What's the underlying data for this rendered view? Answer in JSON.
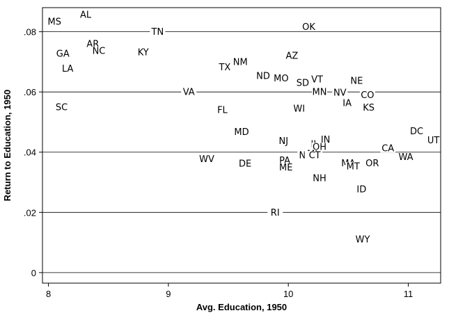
{
  "chart_data": {
    "type": "scatter",
    "title": "",
    "xlabel": "Avg. Education, 1950",
    "ylabel": "Return to Education, 1950",
    "xlim": [
      7.95,
      11.27
    ],
    "ylim": [
      -0.0035,
      0.088
    ],
    "x_ticks": [
      8,
      9,
      10,
      11
    ],
    "x_tick_labels": [
      "8",
      "9",
      "10",
      "11"
    ],
    "y_ticks": [
      0,
      0.02,
      0.04,
      0.06,
      0.08
    ],
    "y_tick_labels": [
      "0",
      ".02",
      ".04",
      ".06",
      ".08"
    ],
    "horizontal_gridlines": true,
    "legend": "none",
    "points": [
      {
        "label": "MS",
        "x": 8.05,
        "y": 0.0834
      },
      {
        "label": "AL",
        "x": 8.31,
        "y": 0.0857
      },
      {
        "label": "TN",
        "x": 8.91,
        "y": 0.08
      },
      {
        "label": "OK",
        "x": 10.17,
        "y": 0.0817
      },
      {
        "label": "GA",
        "x": 8.12,
        "y": 0.0728
      },
      {
        "label": "AR",
        "x": 8.37,
        "y": 0.076
      },
      {
        "label": "NC",
        "x": 8.42,
        "y": 0.0737
      },
      {
        "label": "KY",
        "x": 8.79,
        "y": 0.0732
      },
      {
        "label": "LA",
        "x": 8.16,
        "y": 0.0678
      },
      {
        "label": "AZ",
        "x": 10.03,
        "y": 0.072
      },
      {
        "label": "NM",
        "x": 9.6,
        "y": 0.07
      },
      {
        "label": "TX",
        "x": 9.47,
        "y": 0.0683
      },
      {
        "label": "ND",
        "x": 9.79,
        "y": 0.0653
      },
      {
        "label": "MO",
        "x": 9.94,
        "y": 0.0646
      },
      {
        "label": "SD",
        "x": 10.12,
        "y": 0.063
      },
      {
        "label": "VT",
        "x": 10.24,
        "y": 0.0642
      },
      {
        "label": "NE",
        "x": 10.57,
        "y": 0.0637
      },
      {
        "label": "VA",
        "x": 9.17,
        "y": 0.06
      },
      {
        "label": "MN",
        "x": 10.26,
        "y": 0.06
      },
      {
        "label": "NV",
        "x": 10.43,
        "y": 0.0598
      },
      {
        "label": "CO",
        "x": 10.66,
        "y": 0.059
      },
      {
        "label": "SC",
        "x": 8.11,
        "y": 0.055
      },
      {
        "label": "IA",
        "x": 10.49,
        "y": 0.0563
      },
      {
        "label": "FL",
        "x": 9.45,
        "y": 0.054
      },
      {
        "label": "WI",
        "x": 10.09,
        "y": 0.0545
      },
      {
        "label": "KS",
        "x": 10.67,
        "y": 0.0548
      },
      {
        "label": "MD",
        "x": 9.61,
        "y": 0.0467
      },
      {
        "label": "DC",
        "x": 11.07,
        "y": 0.047
      },
      {
        "label": "NJ",
        "x": 9.96,
        "y": 0.0437
      },
      {
        "label": "IL",
        "x": 10.22,
        "y": 0.0427
      },
      {
        "label": "IN",
        "x": 10.31,
        "y": 0.0442
      },
      {
        "label": "OH",
        "x": 10.26,
        "y": 0.0418
      },
      {
        "label": "UT",
        "x": 11.21,
        "y": 0.044
      },
      {
        "label": "CA",
        "x": 10.83,
        "y": 0.0413
      },
      {
        "label": "NY",
        "x": 10.14,
        "y": 0.039
      },
      {
        "label": "MI",
        "x": 10.2,
        "y": 0.0395
      },
      {
        "label": "CT",
        "x": 10.22,
        "y": 0.039
      },
      {
        "label": "WV",
        "x": 9.32,
        "y": 0.0377
      },
      {
        "label": "PA",
        "x": 9.97,
        "y": 0.0373
      },
      {
        "label": "WA",
        "x": 10.98,
        "y": 0.0384
      },
      {
        "label": "MA",
        "x": 10.5,
        "y": 0.0364
      },
      {
        "label": "OR",
        "x": 10.7,
        "y": 0.0364
      },
      {
        "label": "DE",
        "x": 9.64,
        "y": 0.0362
      },
      {
        "label": "MT",
        "x": 10.54,
        "y": 0.0353
      },
      {
        "label": "ME",
        "x": 9.98,
        "y": 0.035
      },
      {
        "label": "NH",
        "x": 10.26,
        "y": 0.0314
      },
      {
        "label": "ID",
        "x": 10.61,
        "y": 0.0277
      },
      {
        "label": "RI",
        "x": 9.89,
        "y": 0.02
      },
      {
        "label": "WY",
        "x": 10.62,
        "y": 0.0111
      }
    ]
  }
}
